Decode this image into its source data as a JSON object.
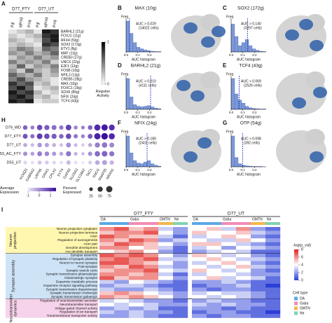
{
  "panel_labels": [
    "A",
    "B",
    "C",
    "D",
    "E",
    "F",
    "G",
    "H",
    "I"
  ],
  "panel_a": {
    "groups": [
      "D77_FTY",
      "D77_UT"
    ],
    "columns": [
      "Pgl",
      "NProg",
      "Prog",
      "Pgl",
      "NProg",
      "Prog"
    ],
    "rows": [
      "BARHL2 (21g)",
      "FOXJ1 (11g)",
      "RFX4 (53g)",
      "SOX2 (172g)",
      "ETV1 (8g)",
      "MAF (13g)",
      "CREB3 (27g)",
      "UNCX (22g)",
      "E2F1 (13g)",
      "FOSB (10g)",
      "NFIL3 (13g)",
      "CREB5 (28g)",
      "MAX (10g)",
      "FOXC1 (19g)",
      "SOX6 (89g)",
      "NFIX (24g)",
      "TCF4 (43g)"
    ],
    "values": [
      [
        0.1,
        0.2,
        0.3,
        0.1,
        0.9,
        0.8
      ],
      [
        0.2,
        0.1,
        0.2,
        0.3,
        0.8,
        0.9
      ],
      [
        0.3,
        0.2,
        0.1,
        0.2,
        0.7,
        0.9
      ],
      [
        0.2,
        0.3,
        0.2,
        0.1,
        0.8,
        0.7
      ],
      [
        0.3,
        0.5,
        0.4,
        0.2,
        0.6,
        0.5
      ],
      [
        0.4,
        0.3,
        0.5,
        0.3,
        0.4,
        0.6
      ],
      [
        0.2,
        0.4,
        0.3,
        0.5,
        0.3,
        0.4
      ],
      [
        0.5,
        0.3,
        0.4,
        0.3,
        0.5,
        0.2
      ],
      [
        0.3,
        0.6,
        0.2,
        0.4,
        0.3,
        0.5
      ],
      [
        0.4,
        0.2,
        0.6,
        0.3,
        0.2,
        0.4
      ],
      [
        0.6,
        0.4,
        0.3,
        0.5,
        0.2,
        0.3
      ],
      [
        0.5,
        0.7,
        0.4,
        0.3,
        0.2,
        0.1
      ],
      [
        0.8,
        0.6,
        0.7,
        0.2,
        0.3,
        0.1
      ],
      [
        0.7,
        0.9,
        0.6,
        0.1,
        0.2,
        0.3
      ],
      [
        0.9,
        0.7,
        0.8,
        0.3,
        0.1,
        0.2
      ],
      [
        0.8,
        0.9,
        0.7,
        0.2,
        0.3,
        0.1
      ],
      [
        0.9,
        0.8,
        0.9,
        0.1,
        0.2,
        0.2
      ]
    ],
    "colorbar_label": "Regulon Activity",
    "colorbar_lim": [
      0,
      1
    ],
    "colorbar_ticks": [
      0,
      1
    ]
  },
  "panel_auc": {
    "y_label": "Freq",
    "x_label": "AUC histogram",
    "xlim": [
      0,
      0.3
    ],
    "ylim": [
      0,
      1
    ],
    "xticks": [
      {
        "value": 0,
        "label": "0.0"
      },
      {
        "value": 0.1,
        "label": "0.1"
      },
      {
        "value": 0.2,
        "label": "0.2"
      }
    ],
    "bins": [
      0,
      0.03,
      0.06,
      0.09,
      0.12,
      0.15,
      0.18,
      0.21,
      0.24,
      0.27,
      0.3
    ],
    "panels": [
      {
        "title": "MAX (10g)",
        "threshold": 0.029,
        "threshold_label": "AUC > 0.029",
        "cells_label": "(14022 cells)",
        "counts": [
          1,
          0.6,
          0.3,
          0.15,
          0.1,
          0.06,
          0.04,
          0.02,
          0.01,
          0.01
        ]
      },
      {
        "title": "SOX2 (172g)",
        "threshold": 0.14,
        "threshold_label": "AUC > 0.140",
        "cells_label": "(3297 cells)",
        "counts": [
          0.9,
          0.5,
          0.2,
          0.3,
          0.4,
          0.2,
          0.1,
          0.05,
          0.02,
          0.01
        ]
      },
      {
        "title": "BARHL2 (21g)",
        "threshold": 0.21,
        "threshold_label": "AUC > 0.210",
        "cells_label": "(4111 cells)",
        "counts": [
          1,
          0.4,
          0.15,
          0.1,
          0.08,
          0.1,
          0.12,
          0.08,
          0.04,
          0.02
        ]
      },
      {
        "title": "TCF4 (43g)",
        "threshold": 0.069,
        "threshold_label": "AUC > 0.069",
        "cells_label": "(2526 cells)",
        "counts": [
          1,
          0.5,
          0.3,
          0.2,
          0.1,
          0.05,
          0.03,
          0.02,
          0.01,
          0.01
        ]
      },
      {
        "title": "NFIX (24g)",
        "threshold": 0.18,
        "threshold_label": "AUC > 0.180",
        "cells_label": "(2431 cells)",
        "counts": [
          1,
          0.45,
          0.2,
          0.12,
          0.1,
          0.15,
          0.2,
          0.1,
          0.05,
          0.02
        ]
      },
      {
        "title": "OTP (54g)",
        "threshold": 0.098,
        "threshold_label": "AUC > 0.098",
        "cells_label": "(392 cells)",
        "counts": [
          1,
          0.3,
          0.1,
          0.05,
          0.03,
          0.02,
          0.01,
          0.01,
          0.01,
          0
        ]
      }
    ]
  },
  "panel_h": {
    "rows": [
      "D79_WD",
      "D77_FTY",
      "D77_UT",
      "D53_AC_FTY",
      "D53_UT"
    ],
    "genes": [
      "KCNQ3",
      "GABRA2",
      "LRFN5",
      "GRIA1",
      "CPLX2",
      "SYT4",
      "GAP43",
      "SLC6A3",
      "SLC18A2",
      "TAC1",
      "SNCG",
      "SNAP25",
      "NRXN1"
    ],
    "percent": [
      [
        40,
        30,
        55,
        50,
        45,
        35,
        60,
        30,
        25,
        40,
        70,
        75,
        65
      ],
      [
        45,
        35,
        60,
        55,
        50,
        40,
        55,
        35,
        30,
        45,
        75,
        80,
        70
      ],
      [
        30,
        25,
        40,
        35,
        30,
        25,
        45,
        25,
        20,
        30,
        50,
        55,
        45
      ],
      [
        35,
        30,
        45,
        40,
        35,
        30,
        50,
        25,
        20,
        35,
        55,
        60,
        50
      ],
      [
        25,
        20,
        30,
        30,
        25,
        20,
        35,
        20,
        15,
        25,
        40,
        45,
        35
      ]
    ],
    "expression": [
      [
        0.5,
        0.2,
        0.8,
        0.6,
        0.4,
        0.3,
        0.9,
        0.1,
        0.2,
        0.5,
        1.2,
        1.4,
        1.1
      ],
      [
        0.7,
        0.4,
        1.0,
        0.8,
        0.6,
        0.5,
        0.8,
        0.3,
        0.1,
        0.6,
        1.3,
        1.5,
        1.2
      ],
      [
        -0.3,
        -0.5,
        -0.1,
        -0.2,
        -0.4,
        -0.6,
        0.0,
        -0.5,
        -0.7,
        -0.3,
        0.2,
        0.3,
        0.1
      ],
      [
        0.0,
        -0.2,
        0.2,
        0.1,
        -0.1,
        -0.3,
        0.3,
        -0.4,
        -0.5,
        0.0,
        0.4,
        0.5,
        0.3
      ],
      [
        -0.8,
        -0.9,
        -0.6,
        -0.7,
        -0.8,
        -0.9,
        -0.5,
        -0.9,
        -1.0,
        -0.7,
        -0.3,
        -0.2,
        -0.4
      ]
    ],
    "expression_label": "Average Expression",
    "expression_lim": [
      -1,
      1.5
    ],
    "expression_ticks": [
      -1,
      0,
      1
    ],
    "percent_label": "Percent Expressed",
    "percent_ticks": [
      25,
      50,
      75
    ]
  },
  "panel_i": {
    "conditions": [
      "D77_FTY",
      "D77_UT"
    ],
    "cell_types": [
      "DA",
      "Gaba",
      "GMTN",
      "Ne"
    ],
    "cell_type_colors": [
      "#5aa9e6",
      "#f08cb4",
      "#f2b84b",
      "#7fd3b0"
    ],
    "column_groups": [
      0,
      0,
      1,
      1,
      2,
      3
    ],
    "groups": [
      {
        "name": "Neuron projection",
        "color": "#fff7b0",
        "terms": [
          "Neuron projection cytoplasm",
          "Neuron projection terminus",
          "Axon",
          "Regulation of axonogenesis",
          "Axon part",
          "Dendrite development",
          "Axo dendritic transport"
        ]
      },
      {
        "name": "Synapse assembly",
        "color": "#cfe3f7",
        "terms": [
          "Synapse assembly",
          "Regulation of synaptic plasticity",
          "Neuron to neuron synapse",
          "Post-synapse",
          "Synaptic vesicle cycle",
          "Synaptic transmission glutamatergic",
          "Glutamatergic synapse",
          "Dopamine metabolic process",
          "Dopamine receptor signaling pathway",
          "Synaptic transmission dopaminergic",
          "Synaptic transmission cholinergic",
          "Synaptic transmission gabaergic"
        ]
      },
      {
        "name": "Neurotransmitter dynamics",
        "color": "#f6d3ea",
        "terms": [
          "Regulation of neurotransmitter secretion",
          "Neurotransmitter transport",
          "Voltage gated channel activity",
          "Regulation of ion transport",
          "Transmembrane transporter activity"
        ]
      }
    ],
    "values": [
      [
        6,
        7,
        5,
        6,
        3,
        2,
        4,
        5,
        3,
        6,
        2,
        1
      ],
      [
        5,
        6,
        6,
        7,
        4,
        2,
        5,
        4,
        4,
        5,
        3,
        2
      ],
      [
        7,
        6,
        5,
        5,
        3,
        1,
        3,
        4,
        5,
        4,
        2,
        1
      ],
      [
        6,
        5,
        7,
        6,
        2,
        3,
        4,
        3,
        3,
        5,
        4,
        2
      ],
      [
        5,
        7,
        6,
        5,
        4,
        2,
        5,
        5,
        4,
        3,
        2,
        1
      ],
      [
        6,
        6,
        4,
        5,
        3,
        1,
        3,
        4,
        2,
        4,
        3,
        2
      ],
      [
        4,
        5,
        6,
        4,
        2,
        1,
        2,
        3,
        4,
        3,
        1,
        1
      ],
      [
        7,
        6,
        7,
        6,
        4,
        2,
        5,
        4,
        3,
        4,
        2,
        1
      ],
      [
        6,
        7,
        6,
        7,
        3,
        3,
        4,
        5,
        4,
        3,
        3,
        2
      ],
      [
        7,
        7,
        6,
        5,
        4,
        2,
        3,
        4,
        5,
        4,
        2,
        1
      ],
      [
        6,
        5,
        7,
        6,
        3,
        2,
        4,
        3,
        4,
        5,
        3,
        2
      ],
      [
        5,
        6,
        6,
        7,
        4,
        3,
        5,
        4,
        3,
        4,
        2,
        1
      ],
      [
        6,
        6,
        5,
        6,
        3,
        1,
        3,
        4,
        4,
        3,
        2,
        2
      ],
      [
        7,
        5,
        6,
        6,
        4,
        2,
        4,
        5,
        3,
        4,
        3,
        1
      ],
      [
        3,
        2,
        4,
        3,
        2,
        1,
        2,
        2,
        3,
        2,
        1,
        1
      ],
      [
        2,
        3,
        3,
        2,
        1,
        1,
        1,
        2,
        2,
        3,
        1,
        0
      ],
      [
        3,
        2,
        2,
        3,
        2,
        1,
        2,
        1,
        2,
        2,
        1,
        1
      ],
      [
        5,
        6,
        5,
        4,
        3,
        2,
        3,
        4,
        3,
        3,
        2,
        1
      ],
      [
        6,
        5,
        6,
        5,
        4,
        2,
        4,
        3,
        4,
        3,
        2,
        1
      ],
      [
        3,
        4,
        3,
        2,
        2,
        1,
        2,
        3,
        2,
        2,
        1,
        1
      ],
      [
        4,
        3,
        4,
        3,
        2,
        2,
        3,
        2,
        3,
        2,
        2,
        1
      ],
      [
        2,
        3,
        2,
        3,
        1,
        1,
        2,
        2,
        1,
        2,
        1,
        1
      ],
      [
        3,
        2,
        3,
        2,
        2,
        1,
        1,
        2,
        2,
        1,
        1,
        0
      ],
      [
        2,
        2,
        3,
        2,
        1,
        1,
        2,
        1,
        2,
        2,
        1,
        1
      ]
    ],
    "legend_title": "-log(p_val)",
    "lim": [
      0,
      8
    ],
    "ticks": [
      0,
      2,
      4,
      6,
      8
    ],
    "cell_type_title": "Cell type"
  }
}
